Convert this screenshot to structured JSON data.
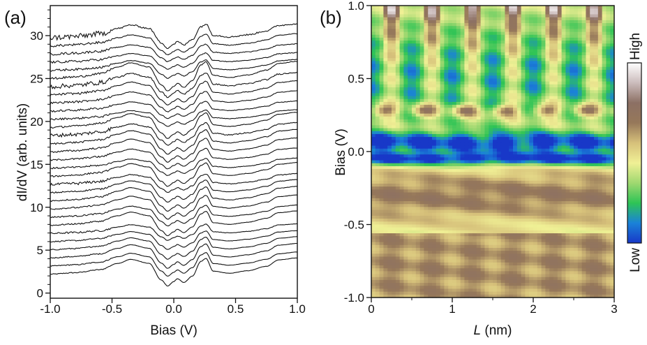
{
  "chart_data": [
    {
      "type": "line",
      "panel_label": "(a)",
      "title": "",
      "xlabel": "Bias (V)",
      "ylabel": "dI/dV (arb. units)",
      "xlim": [
        -1.0,
        1.0
      ],
      "ylim": [
        -0.6,
        33.5
      ],
      "x_ticks": [
        -1.0,
        -0.5,
        0.0,
        0.5,
        1.0
      ],
      "x_tick_labels": [
        "-1.0",
        "-0.5",
        "0.0",
        "0.5",
        "1.0"
      ],
      "y_ticks": [
        0,
        5,
        10,
        15,
        20,
        25,
        30
      ],
      "y_tick_labels": [
        "0",
        "5",
        "10",
        "15",
        "20",
        "25",
        "30"
      ],
      "series_count": 30,
      "series_offset_step": 0.95,
      "series_baseline": 2.2,
      "line_color": "#111111",
      "legend": "none",
      "grid": false,
      "curve_shape": {
        "description": "stacked spectra with broad shoulder near -0.35 V, dip near -0.07 V, small peak near 0.03 V, peak near 0.25 V, step near 0.8 V",
        "x": [
          -1.0,
          -0.8,
          -0.6,
          -0.45,
          -0.35,
          -0.2,
          -0.1,
          -0.05,
          0.0,
          0.03,
          0.08,
          0.15,
          0.22,
          0.26,
          0.32,
          0.45,
          0.6,
          0.75,
          0.85,
          1.0
        ],
        "y": [
          0.0,
          0.15,
          0.45,
          1.1,
          1.5,
          1.1,
          -0.6,
          -1.2,
          -0.75,
          -0.45,
          -0.85,
          -0.2,
          1.3,
          1.6,
          0.3,
          0.1,
          0.35,
          0.8,
          1.45,
          1.65
        ]
      }
    },
    {
      "type": "heatmap",
      "panel_label": "(b)",
      "title": "",
      "xlabel_italic": "L",
      "xlabel_rest": " (nm)",
      "ylabel": "Bias (V)",
      "xlim": [
        0,
        3
      ],
      "ylim": [
        -1.0,
        1.0
      ],
      "x_ticks": [
        0,
        1,
        2,
        3
      ],
      "x_tick_labels": [
        "0",
        "1",
        "2",
        "3"
      ],
      "y_ticks": [
        -1.0,
        -0.5,
        0.0,
        0.5,
        1.0
      ],
      "y_tick_labels": [
        "-1.0",
        "-0.5",
        "0.0",
        "0.5",
        "1.0"
      ],
      "colorbar": {
        "high_label": "High",
        "low_label": "Low",
        "colors": [
          "#1838c8",
          "#1a82d8",
          "#2ec455",
          "#9fd870",
          "#f0f095",
          "#d6c07a",
          "#96785a",
          "#8c7064",
          "#cbbcbc",
          "#ffffff"
        ]
      },
      "modulation_period_nm": 0.5,
      "features": [
        {
          "bias": 0.28,
          "description": "brown periodic peaks"
        },
        {
          "bias": 0.05,
          "description": "blue dip band"
        },
        {
          "bias": -0.05,
          "description": "dark blue dip band"
        },
        {
          "bias": -0.3,
          "description": "broad brown band"
        },
        {
          "bias": 0.95,
          "description": "white/brown high-intensity maxima"
        }
      ]
    }
  ]
}
